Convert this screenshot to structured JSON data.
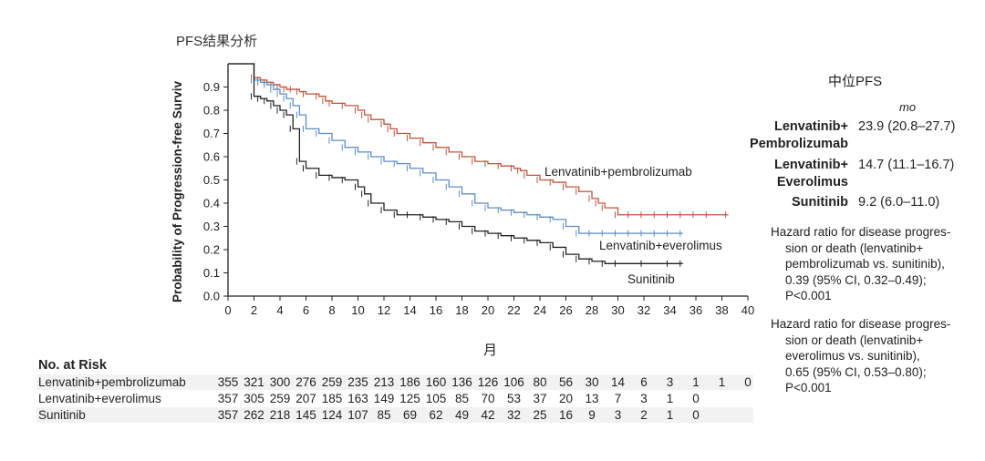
{
  "page_title": "PFS结果分析",
  "chart_data": {
    "type": "line",
    "title": "",
    "xlabel": "月",
    "ylabel": "Probability of Progression-free Surviv",
    "xlim": [
      0,
      40
    ],
    "ylim": [
      0,
      1.0
    ],
    "x_ticks": [
      "0",
      "2",
      "4",
      "6",
      "8",
      "10",
      "12",
      "14",
      "16",
      "18",
      "20",
      "22",
      "24",
      "26",
      "28",
      "30",
      "32",
      "34",
      "36",
      "38",
      "40"
    ],
    "y_ticks": [
      "0.0",
      "0.1",
      "0.2",
      "0.3",
      "0.4",
      "0.5",
      "0.6",
      "0.7",
      "0.8",
      "0.9"
    ],
    "series": [
      {
        "name": "Lenvatinib+pembrolizumab",
        "color": "#c0533a",
        "x": [
          0,
          1.6,
          2,
          2.5,
          3,
          3.5,
          4,
          4.5,
          5,
          5.5,
          6,
          7,
          7.5,
          8,
          9,
          10,
          10.5,
          11,
          12,
          12.5,
          13,
          14,
          15,
          16,
          17,
          18,
          19,
          20,
          21,
          22,
          22.5,
          23,
          24,
          25,
          26,
          27,
          28,
          28.5,
          29,
          30,
          31,
          32,
          33,
          34,
          35,
          36,
          37,
          38.5
        ],
        "y": [
          1.0,
          1.0,
          0.94,
          0.93,
          0.92,
          0.91,
          0.9,
          0.89,
          0.89,
          0.88,
          0.87,
          0.86,
          0.84,
          0.83,
          0.82,
          0.8,
          0.78,
          0.76,
          0.74,
          0.72,
          0.7,
          0.68,
          0.66,
          0.64,
          0.62,
          0.6,
          0.58,
          0.57,
          0.56,
          0.55,
          0.54,
          0.52,
          0.5,
          0.49,
          0.47,
          0.45,
          0.42,
          0.4,
          0.38,
          0.35,
          0.35,
          0.35,
          0.35,
          0.35,
          0.35,
          0.35,
          0.35,
          0.35
        ]
      },
      {
        "name": "Lenvatinib+everolimus",
        "color": "#5b8cc6",
        "x": [
          0,
          1.6,
          2,
          2.5,
          3,
          3.5,
          4,
          4.5,
          5,
          5.5,
          6,
          7,
          8,
          9,
          10,
          11,
          12,
          13,
          14,
          15,
          16,
          17,
          18,
          19,
          20,
          21,
          22,
          23,
          24,
          25,
          26,
          27,
          28,
          29,
          30,
          31,
          32,
          33,
          34,
          35
        ],
        "y": [
          1.0,
          1.0,
          0.93,
          0.92,
          0.91,
          0.89,
          0.87,
          0.85,
          0.82,
          0.78,
          0.72,
          0.7,
          0.67,
          0.64,
          0.62,
          0.6,
          0.58,
          0.57,
          0.55,
          0.53,
          0.5,
          0.47,
          0.44,
          0.4,
          0.38,
          0.37,
          0.36,
          0.35,
          0.34,
          0.33,
          0.3,
          0.27,
          0.27,
          0.27,
          0.27,
          0.27,
          0.27,
          0.27,
          0.27,
          0.27
        ]
      },
      {
        "name": "Sunitinib",
        "color": "#222222",
        "x": [
          0,
          1.6,
          2,
          2.5,
          3,
          3.5,
          4,
          4.5,
          5,
          5.5,
          6,
          7,
          8,
          9,
          10,
          10.5,
          11,
          12,
          13,
          14,
          15,
          16,
          17,
          18,
          19,
          20,
          21,
          22,
          23,
          24,
          25,
          26,
          27,
          28,
          29,
          30,
          32,
          34,
          35
        ],
        "y": [
          1.0,
          1.0,
          0.86,
          0.85,
          0.84,
          0.82,
          0.8,
          0.78,
          0.72,
          0.58,
          0.55,
          0.52,
          0.51,
          0.5,
          0.47,
          0.44,
          0.4,
          0.37,
          0.35,
          0.35,
          0.34,
          0.33,
          0.32,
          0.3,
          0.28,
          0.27,
          0.26,
          0.25,
          0.24,
          0.23,
          0.21,
          0.18,
          0.16,
          0.15,
          0.14,
          0.14,
          0.14,
          0.14,
          0.14
        ]
      }
    ]
  },
  "median_panel": {
    "title": "中位PFS",
    "unit": "mo",
    "rows": [
      {
        "name_line1": "Lenvatinib+",
        "name_line2": "Pembrolizumab",
        "value": "23.9 (20.8–27.7)"
      },
      {
        "name_line1": "Lenvatinib+",
        "name_line2": "Everolimus",
        "value": "14.7 (11.1–16.7)"
      },
      {
        "name_line1": "Sunitinib",
        "name_line2": "",
        "value": "9.2 (6.0–11.0)"
      }
    ],
    "hazard1": {
      "line1": "Hazard ratio for disease progres-",
      "line2": "sion or death (lenvatinib+",
      "line3": "pembrolizumab vs. sunitinib),",
      "line4": "0.39 (95% CI, 0.32–0.49);",
      "line5": "P<0.001"
    },
    "hazard2": {
      "line1": "Hazard ratio for disease progres-",
      "line2": "sion or death (lenvatinib+",
      "line3": "everolimus vs. sunitinib),",
      "line4": "0.65 (95% CI, 0.53–0.80);",
      "line5": "P<0.001"
    }
  },
  "risk_table": {
    "title": "No. at Risk",
    "rows": [
      {
        "name": "Lenvatinib+pembrolizumab",
        "values": [
          "355",
          "321",
          "300",
          "276",
          "259",
          "235",
          "213",
          "186",
          "160",
          "136",
          "126",
          "106",
          "80",
          "56",
          "30",
          "14",
          "6",
          "3",
          "1",
          "1",
          "0"
        ]
      },
      {
        "name": "Lenvatinib+everolimus",
        "values": [
          "357",
          "305",
          "259",
          "207",
          "185",
          "163",
          "149",
          "125",
          "105",
          "85",
          "70",
          "53",
          "37",
          "20",
          "13",
          "7",
          "3",
          "1",
          "0"
        ]
      },
      {
        "name": "Sunitinib",
        "values": [
          "357",
          "262",
          "218",
          "145",
          "124",
          "107",
          "85",
          "69",
          "62",
          "49",
          "42",
          "32",
          "25",
          "16",
          "9",
          "3",
          "2",
          "1",
          "0"
        ]
      }
    ]
  }
}
